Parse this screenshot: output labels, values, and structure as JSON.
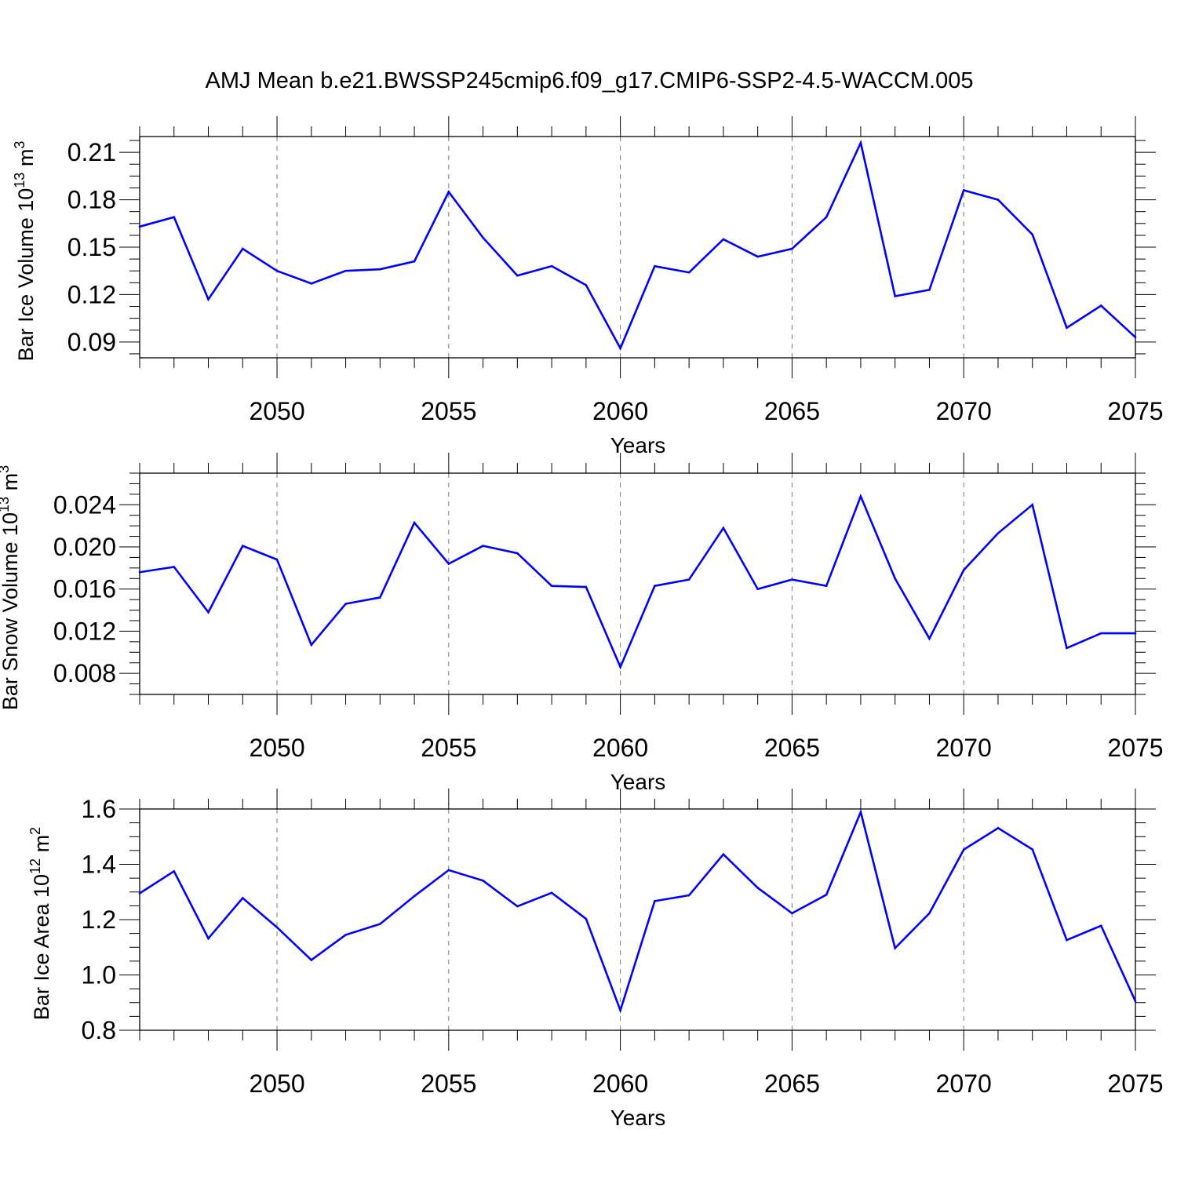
{
  "figure": {
    "title": "AMJ Mean b.e21.BWSSP245cmip6.f09_g17.CMIP6-SSP2-4.5-WACCM.005"
  },
  "colors": {
    "line": "#0000ff",
    "axes": "#000000",
    "grid": "#777777"
  },
  "chart_data": [
    {
      "type": "line",
      "ylabel": {
        "text": "Bar Ice Volume 10",
        "exp": "13",
        "unit": " m",
        "unit_exp": "3"
      },
      "xlabel": "Years",
      "xlim": [
        2046,
        2075
      ],
      "ylim": [
        0.08,
        0.22
      ],
      "xticks": [
        "2050",
        "2055",
        "2060",
        "2065",
        "2070",
        "2075"
      ],
      "yticks": [
        "0.09",
        "0.12",
        "0.15",
        "0.18",
        "0.21"
      ],
      "grid": "vertical dashed at major x ticks",
      "x": [
        2046,
        2047,
        2048,
        2049,
        2050,
        2051,
        2052,
        2053,
        2054,
        2055,
        2056,
        2057,
        2058,
        2059,
        2060,
        2061,
        2062,
        2063,
        2064,
        2065,
        2066,
        2067,
        2068,
        2069,
        2070,
        2071,
        2072,
        2073,
        2074,
        2075
      ],
      "values": [
        0.163,
        0.169,
        0.117,
        0.149,
        0.135,
        0.127,
        0.135,
        0.136,
        0.141,
        0.185,
        0.156,
        0.132,
        0.138,
        0.126,
        0.086,
        0.138,
        0.134,
        0.155,
        0.144,
        0.149,
        0.169,
        0.216,
        0.119,
        0.123,
        0.186,
        0.18,
        0.158,
        0.099,
        0.113,
        0.093
      ]
    },
    {
      "type": "line",
      "ylabel": {
        "text": "Bar Snow Volume 10",
        "exp": "13",
        "unit": " m",
        "unit_exp": "3"
      },
      "xlabel": "Years",
      "xlim": [
        2046,
        2075
      ],
      "ylim": [
        0.006,
        0.027
      ],
      "xticks": [
        "2050",
        "2055",
        "2060",
        "2065",
        "2070",
        "2075"
      ],
      "yticks": [
        "0.008",
        "0.012",
        "0.016",
        "0.020",
        "0.024"
      ],
      "grid": "vertical dashed at major x ticks",
      "x": [
        2046,
        2047,
        2048,
        2049,
        2050,
        2051,
        2052,
        2053,
        2054,
        2055,
        2056,
        2057,
        2058,
        2059,
        2060,
        2061,
        2062,
        2063,
        2064,
        2065,
        2066,
        2067,
        2068,
        2069,
        2070,
        2071,
        2072,
        2073,
        2074,
        2075
      ],
      "values": [
        0.0176,
        0.0181,
        0.0138,
        0.0201,
        0.0188,
        0.0107,
        0.0146,
        0.0152,
        0.0223,
        0.0184,
        0.0201,
        0.0194,
        0.0163,
        0.0162,
        0.0086,
        0.0163,
        0.0169,
        0.0218,
        0.016,
        0.0169,
        0.0163,
        0.0248,
        0.017,
        0.0113,
        0.0178,
        0.0213,
        0.024,
        0.0104,
        0.0118,
        0.0118
      ]
    },
    {
      "type": "line",
      "ylabel": {
        "text": "Bar Ice Area 10",
        "exp": "12",
        "unit": " m",
        "unit_exp": "2"
      },
      "xlabel": "Years",
      "xlim": [
        2046,
        2075
      ],
      "ylim": [
        0.8,
        1.6
      ],
      "xticks": [
        "2050",
        "2055",
        "2060",
        "2065",
        "2070",
        "2075"
      ],
      "yticks": [
        "0.8",
        "1.0",
        "1.2",
        "1.4",
        "1.6"
      ],
      "grid": "vertical dashed at major x ticks",
      "x": [
        2046,
        2047,
        2048,
        2049,
        2050,
        2051,
        2052,
        2053,
        2054,
        2055,
        2056,
        2057,
        2058,
        2059,
        2060,
        2061,
        2062,
        2063,
        2064,
        2065,
        2066,
        2067,
        2068,
        2069,
        2070,
        2071,
        2072,
        2073,
        2074,
        2075
      ],
      "values": [
        1.295,
        1.375,
        1.132,
        1.278,
        1.172,
        1.054,
        1.145,
        1.184,
        1.285,
        1.379,
        1.341,
        1.248,
        1.297,
        1.203,
        0.872,
        1.267,
        1.288,
        1.436,
        1.315,
        1.223,
        1.29,
        1.589,
        1.097,
        1.223,
        1.453,
        1.531,
        1.454,
        1.126,
        1.178,
        0.905
      ]
    }
  ]
}
